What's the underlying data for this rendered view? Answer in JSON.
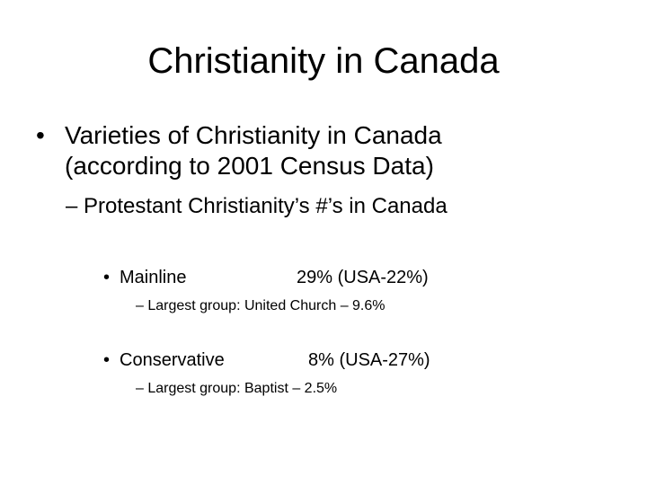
{
  "title": "Christianity in Canada",
  "bullet_main": {
    "symbol": "•",
    "line1": "Varieties of Christianity in Canada",
    "line2": "(according to 2001 Census Data)"
  },
  "sub_bullet": "– Protestant Christianity’s #’s in Canada",
  "groups": [
    {
      "symbol": "•",
      "name": "Mainline",
      "value": "29% (USA-22%)",
      "detail": "– Largest group: United Church – 9.6%"
    },
    {
      "symbol": "•",
      "name": "Conservative",
      "value": "8% (USA-27%)",
      "detail": "– Largest group: Baptist – 2.5%"
    }
  ]
}
